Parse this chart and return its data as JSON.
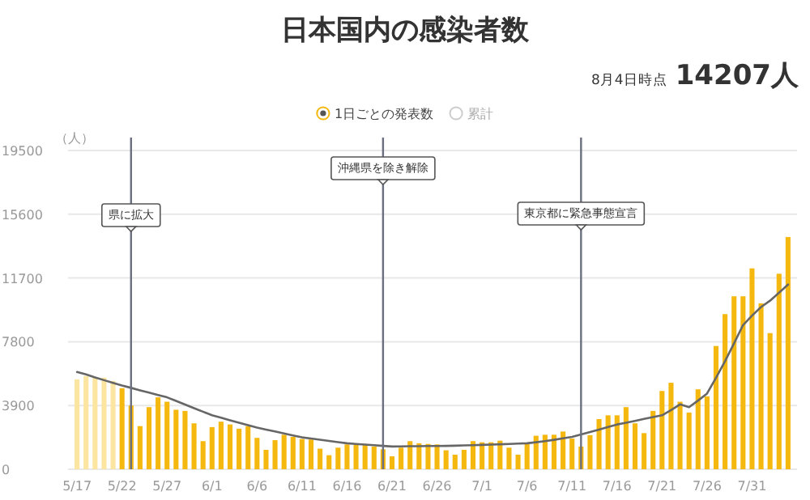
{
  "chart_data": {
    "type": "bar",
    "title": "日本国内の感染者数",
    "subtitle": "8月4日時点 **14207人**",
    "ylabel": "（人）",
    "x": [
      "--05-17",
      "--05-18",
      "--05-19",
      "--05-20",
      "--05-21",
      "--05-22",
      "--05-23",
      "--05-24",
      "--05-25",
      "--05-26",
      "--05-27",
      "--05-28",
      "--05-29",
      "--05-30",
      "--05-31",
      "--06-01",
      "--06-02",
      "--06-03",
      "--06-04",
      "--06-05",
      "--06-06",
      "--06-07",
      "--06-08",
      "--06-09",
      "--06-10",
      "--06-11",
      "--06-12",
      "--06-13",
      "--06-14",
      "--06-15",
      "--06-16",
      "--06-17",
      "--06-18",
      "--06-19",
      "--06-20",
      "--06-21",
      "--06-22",
      "--06-23",
      "--06-24",
      "--06-25",
      "--06-26",
      "--06-27",
      "--06-28",
      "--06-29",
      "--06-30",
      "--07-01",
      "--07-02",
      "--07-03",
      "--07-04",
      "--07-05",
      "--07-06",
      "--07-07",
      "--07-08",
      "--07-09",
      "--07-10",
      "--07-11",
      "--07-12",
      "--07-13",
      "--07-14",
      "--07-15",
      "--07-16",
      "--07-17",
      "--07-18",
      "--07-19",
      "--07-20",
      "--07-21",
      "--07-22",
      "--07-23",
      "--07-24",
      "--07-25",
      "--07-26",
      "--07-27",
      "--07-28",
      "--07-29",
      "--07-30",
      "--07-31",
      "--08-01",
      "--08-02",
      "--08-03",
      "--08-04"
    ],
    "series": [
      {
        "name": "1日ごとの発表数",
        "color": "#f5b80f",
        "colors": [
          "#fbe5a0",
          "#fbe5a0",
          "#fbe5a0",
          "#fbe5a0",
          "#fbe5a0",
          "#f5b80f",
          "#f5b80f",
          "#f5b80f",
          "#f5b80f",
          "#f5b80f",
          "#f5b80f",
          "#f5b80f",
          "#f5b80f",
          "#f5b80f",
          "#f5b80f",
          "#f5b80f",
          "#f5b80f",
          "#f5b80f",
          "#f5b80f",
          "#f5b80f",
          "#f5b80f",
          "#f5b80f",
          "#f5b80f",
          "#f5b80f",
          "#f5b80f",
          "#f5b80f",
          "#f5b80f",
          "#f5b80f",
          "#f5b80f",
          "#f5b80f",
          "#f5b80f",
          "#f5b80f",
          "#f5b80f",
          "#f5b80f",
          "#f5b80f",
          "#f5b80f",
          "#f5b80f",
          "#f5b80f",
          "#f5b80f",
          "#f5b80f",
          "#f5b80f",
          "#f5b80f",
          "#f5b80f",
          "#f5b80f",
          "#f5b80f",
          "#f5b80f",
          "#f5b80f",
          "#f5b80f",
          "#f5b80f",
          "#f5b80f",
          "#f5b80f",
          "#f5b80f",
          "#f5b80f",
          "#f5b80f",
          "#f5b80f",
          "#f5b80f",
          "#f5b80f",
          "#f5b80f",
          "#f5b80f",
          "#f5b80f",
          "#f5b80f",
          "#f5b80f",
          "#f5b80f",
          "#f5b80f",
          "#f5b80f",
          "#f5b80f",
          "#f5b80f",
          "#f5b80f",
          "#f5b80f",
          "#f5b80f",
          "#f5b80f",
          "#f5b80f",
          "#f5b80f",
          "#f5b80f",
          "#f5b80f",
          "#f5b80f",
          "#f5b80f",
          "#f5b80f",
          "#f5b80f",
          "#f5b80f"
        ],
        "values": [
          5500,
          5700,
          5600,
          5600,
          5400,
          4960,
          3900,
          2640,
          3800,
          4400,
          4130,
          3640,
          3570,
          2810,
          1720,
          2580,
          2910,
          2740,
          2480,
          2640,
          1920,
          1190,
          1780,
          2110,
          1980,
          1850,
          1820,
          1260,
          860,
          1320,
          1520,
          1520,
          1490,
          1390,
          1220,
          790,
          1320,
          1720,
          1590,
          1550,
          1520,
          1160,
          890,
          1190,
          1720,
          1650,
          1650,
          1750,
          1320,
          890,
          1590,
          2050,
          2110,
          2110,
          2310,
          1880,
          1390,
          2080,
          3070,
          3300,
          3300,
          3800,
          2810,
          2210,
          3570,
          4790,
          5290,
          4130,
          3470,
          4890,
          4460,
          7540,
          9490,
          10580,
          10580,
          12290,
          10150,
          8330,
          11960,
          14207
        ]
      },
      {
        "type": "line",
        "color": "#666666",
        "values": [
          5950,
          5800,
          5620,
          5450,
          5280,
          5120,
          4980,
          4830,
          4690,
          4540,
          4400,
          4180,
          3960,
          3740,
          3520,
          3300,
          3150,
          3000,
          2850,
          2700,
          2550,
          2430,
          2310,
          2190,
          2070,
          1950,
          1880,
          1810,
          1730,
          1660,
          1590,
          1550,
          1510,
          1470,
          1430,
          1390,
          1400,
          1410,
          1410,
          1420,
          1420,
          1430,
          1440,
          1460,
          1470,
          1490,
          1510,
          1530,
          1550,
          1570,
          1590,
          1650,
          1720,
          1800,
          1890,
          1980,
          2130,
          2280,
          2430,
          2590,
          2740,
          2850,
          2960,
          3080,
          3190,
          3300,
          3620,
          3970,
          3800,
          4200,
          4630,
          5600,
          6610,
          7700,
          8820,
          9400,
          9920,
          10310,
          10800,
          11300
        ]
      },
      {
        "name": "累計",
        "type": "line",
        "color": "#cccccc",
        "values": [
          null,
          null,
          null,
          null,
          null,
          null,
          null,
          null,
          null,
          null,
          null,
          null,
          null,
          null,
          null,
          null,
          null,
          null,
          null,
          null,
          null,
          null,
          null,
          null,
          null,
          null,
          null,
          null,
          null,
          null,
          null,
          null,
          null,
          null,
          null,
          null,
          null,
          null,
          null,
          null,
          null,
          null,
          null,
          null,
          null,
          null,
          null,
          null,
          null,
          null,
          null,
          null,
          null,
          null,
          null,
          null,
          null,
          null,
          null,
          null,
          null,
          null,
          null,
          null,
          null,
          null,
          null,
          null,
          null,
          null,
          null,
          null,
          null,
          null,
          null,
          null,
          null,
          null,
          null,
          null
        ]
      }
    ],
    "xlim": [
      "--05-16",
      "--08-05"
    ],
    "xticks": [
      {
        "value": "--05-17",
        "label": "5/17"
      },
      {
        "value": "--05-22",
        "label": "5/22"
      },
      {
        "value": "--05-27",
        "label": "5/27"
      },
      {
        "value": "--06-01",
        "label": "6/1"
      },
      {
        "value": "--06-06",
        "label": "6/6"
      },
      {
        "value": "--06-11",
        "label": "6/11"
      },
      {
        "value": "--06-16",
        "label": "6/16"
      },
      {
        "value": "--06-21",
        "label": "6/21"
      },
      {
        "value": "--06-26",
        "label": "6/26"
      },
      {
        "value": "--07-01",
        "label": "7/1"
      },
      {
        "value": "--07-06",
        "label": "7/6"
      },
      {
        "value": "--07-11",
        "label": "7/11"
      },
      {
        "value": "--07-16",
        "label": "7/16"
      },
      {
        "value": "--07-21",
        "label": "7/21"
      },
      {
        "value": "--07-26",
        "label": "7/26"
      },
      {
        "value": "--07-31",
        "label": "7/31"
      }
    ],
    "ylim": [
      0,
      19500
    ],
    "yticks": [
      0,
      3900,
      7800,
      11700,
      15600,
      19500
    ],
    "ref_lines": [
      {
        "axis": "x",
        "value": "--05-23",
        "label": "県に拡大",
        "color": "#6b6f80"
      },
      {
        "axis": "x",
        "value": "--06-20",
        "label": "沖縄県を除き解除",
        "color": "#6b6f80"
      },
      {
        "axis": "x",
        "value": "--07-12",
        "label": "東京都に緊急事態宣言",
        "color": "#6b6f80"
      }
    ],
    "grid": "y",
    "legend": "top"
  }
}
